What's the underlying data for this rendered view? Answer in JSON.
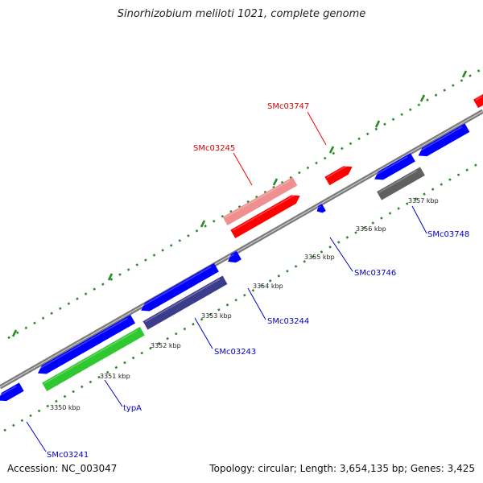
{
  "title": "Sinorhizobium meliloti 1021, complete genome",
  "footer": {
    "accession": "Accession: NC_003047",
    "summary": "Topology: circular; Length: 3,654,135 bp; Genes: 3,425"
  },
  "tick_labels": [
    "3350 kbp",
    "3351 kbp",
    "3352 kbp",
    "3353 kbp",
    "3354 kbp",
    "3355 kbp",
    "3356 kbp",
    "3357 kbp"
  ],
  "gene_labels": [
    "SMc03747",
    "SMc03245",
    "SMc03748",
    "SMc03746",
    "SMc03244",
    "SMc03243",
    "typA",
    "SMc03241"
  ],
  "colors": {
    "forward_gene": "#ff0000",
    "forward_gene_light": "#f08f8f",
    "reverse_gene": "#0000ff",
    "reverse_gene_dark": "#3c3c8c",
    "green_gene": "#30c830",
    "grey_gene": "#606060",
    "backbone": "#8c8c8c",
    "ticks": "#2a8a2a"
  }
}
